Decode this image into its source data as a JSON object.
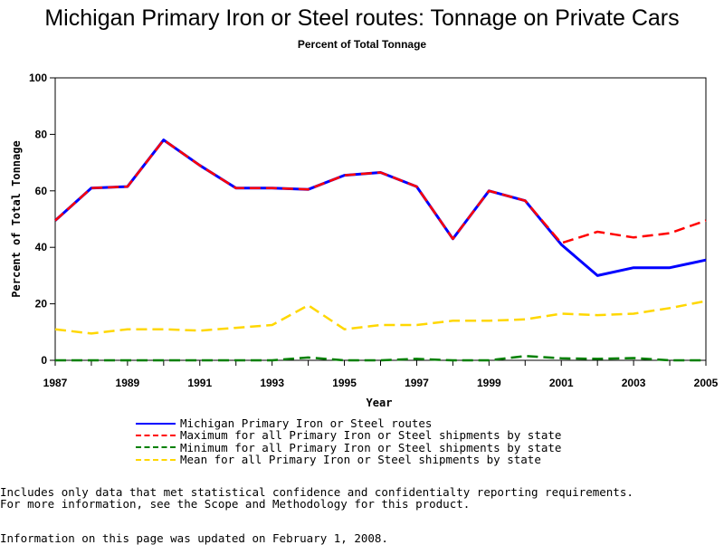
{
  "chart_data": {
    "type": "line",
    "title": "Michigan Primary Iron or Steel routes: Tonnage on Private Cars",
    "subtitle": "Percent of Total Tonnage",
    "xlabel": "Year",
    "ylabel": "Percent of Total Tonnage",
    "x": [
      1987,
      1988,
      1989,
      1990,
      1991,
      1992,
      1993,
      1994,
      1995,
      1996,
      1997,
      1998,
      1999,
      2000,
      2001,
      2002,
      2003,
      2004,
      2005
    ],
    "x_tick_labels": [
      "1987",
      "1989",
      "1991",
      "1993",
      "1995",
      "1997",
      "1999",
      "2001",
      "2003",
      "2005"
    ],
    "xlim": [
      1987,
      2005
    ],
    "ylim": [
      0,
      100
    ],
    "y_tick_labels": [
      "0",
      "20",
      "40",
      "60",
      "80",
      "100"
    ],
    "grid": false,
    "legend_position": "bottom",
    "series": [
      {
        "name": "Michigan Primary Iron or Steel routes",
        "color": "#0000ff",
        "style": "solid",
        "values": [
          49.5,
          61,
          61.5,
          78,
          69,
          61,
          61,
          60.5,
          65.5,
          66.5,
          61.5,
          43,
          60,
          56.5,
          41,
          30,
          32.8,
          32.8,
          35.5
        ]
      },
      {
        "name": "Maximum for all Primary Iron or Steel shipments by state",
        "color": "#ff0000",
        "style": "dashed",
        "values": [
          49.5,
          61,
          61.5,
          78,
          69,
          61,
          61,
          60.5,
          65.5,
          66.5,
          61.5,
          43,
          60,
          56.5,
          41.5,
          45.5,
          43.5,
          45,
          49.5
        ]
      },
      {
        "name": "Minimum for all Primary Iron or Steel shipments by state",
        "color": "#008000",
        "style": "dashed",
        "values": [
          0,
          0,
          0,
          0,
          0,
          0,
          0,
          1,
          0,
          0,
          0.5,
          0,
          0,
          1.5,
          0.7,
          0.5,
          0.8,
          0,
          0
        ]
      },
      {
        "name": "Mean for all Primary Iron or Steel shipments by state",
        "color": "#ffd700",
        "style": "dashed",
        "values": [
          11,
          9.5,
          11,
          11,
          10.5,
          11.5,
          12.5,
          19.5,
          11,
          12.5,
          12.5,
          14,
          14,
          14.5,
          16.5,
          16,
          16.5,
          18.5,
          21
        ]
      }
    ]
  },
  "footnotes": {
    "line1": "Includes only data that met statistical confidence and confidentialty reporting requirements.",
    "line2": "For more information, see the Scope and Methodology for this product.",
    "line3": "Information on this page was updated on February 1, 2008."
  }
}
